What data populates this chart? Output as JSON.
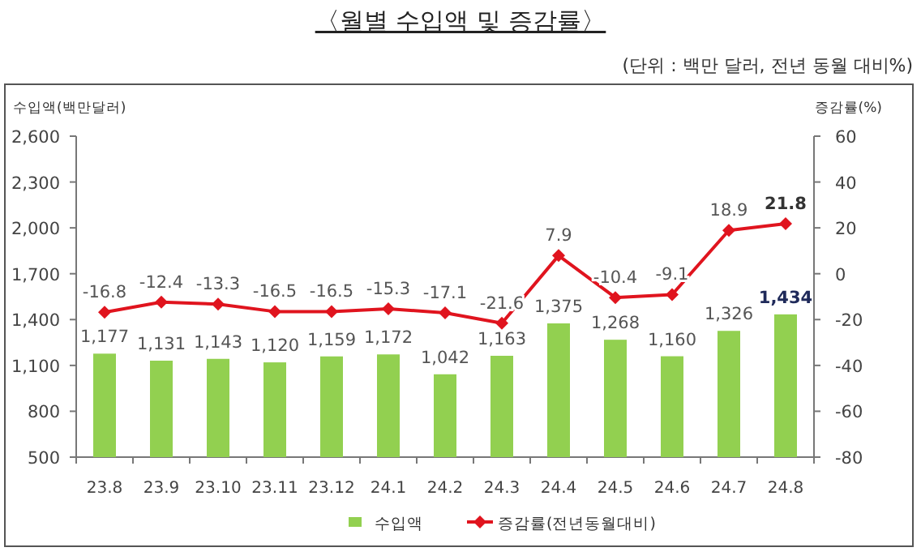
{
  "chart_data": {
    "type": "bar",
    "title": "〈월별 수입액 및 증감률〉",
    "subtitle": "(단위 : 백만 달러, 전년 동월 대비%)",
    "ylabel": "수입액(백만달러)",
    "y2label": "증감률(%)",
    "categories": [
      "23.8",
      "23.9",
      "23.10",
      "23.11",
      "23.12",
      "24.1",
      "24.2",
      "24.3",
      "24.4",
      "24.5",
      "24.6",
      "24.7",
      "24.8"
    ],
    "series": [
      {
        "name": "수입액",
        "color": "#92d050",
        "values": [
          1177,
          1131,
          1143,
          1120,
          1159,
          1172,
          1042,
          1163,
          1375,
          1268,
          1160,
          1326,
          1434
        ],
        "value_labels": [
          "1,177",
          "1,131",
          "1,143",
          "1,120",
          "1,159",
          "1,172",
          "1,042",
          "1,163",
          "1,375",
          "1,268",
          "1,160",
          "1,326",
          "1,434"
        ]
      },
      {
        "name": "증감률(전년동월대비)",
        "type": "line",
        "axis": "y2",
        "color": "#e0141e",
        "marker": "diamond",
        "values": [
          -16.8,
          -12.4,
          -13.3,
          -16.5,
          -16.5,
          -15.3,
          -17.1,
          -21.6,
          7.9,
          -10.4,
          -9.1,
          18.9,
          21.8
        ]
      }
    ],
    "ylim": [
      500,
      2600
    ],
    "yticks": [
      {
        "value": 500,
        "label": "500"
      },
      {
        "value": 800,
        "label": "800"
      },
      {
        "value": 1100,
        "label": "1,100"
      },
      {
        "value": 1400,
        "label": "1,400"
      },
      {
        "value": 1700,
        "label": "1,700"
      },
      {
        "value": 2000,
        "label": "2,000"
      },
      {
        "value": 2300,
        "label": "2,300"
      },
      {
        "value": 2600,
        "label": "2,600"
      }
    ],
    "y2lim": [
      -80,
      60
    ],
    "y2ticks": [
      -80,
      -60,
      -40,
      -20,
      0,
      20,
      40,
      60
    ],
    "data_labels": true,
    "legend": "bottom",
    "grid": false
  }
}
